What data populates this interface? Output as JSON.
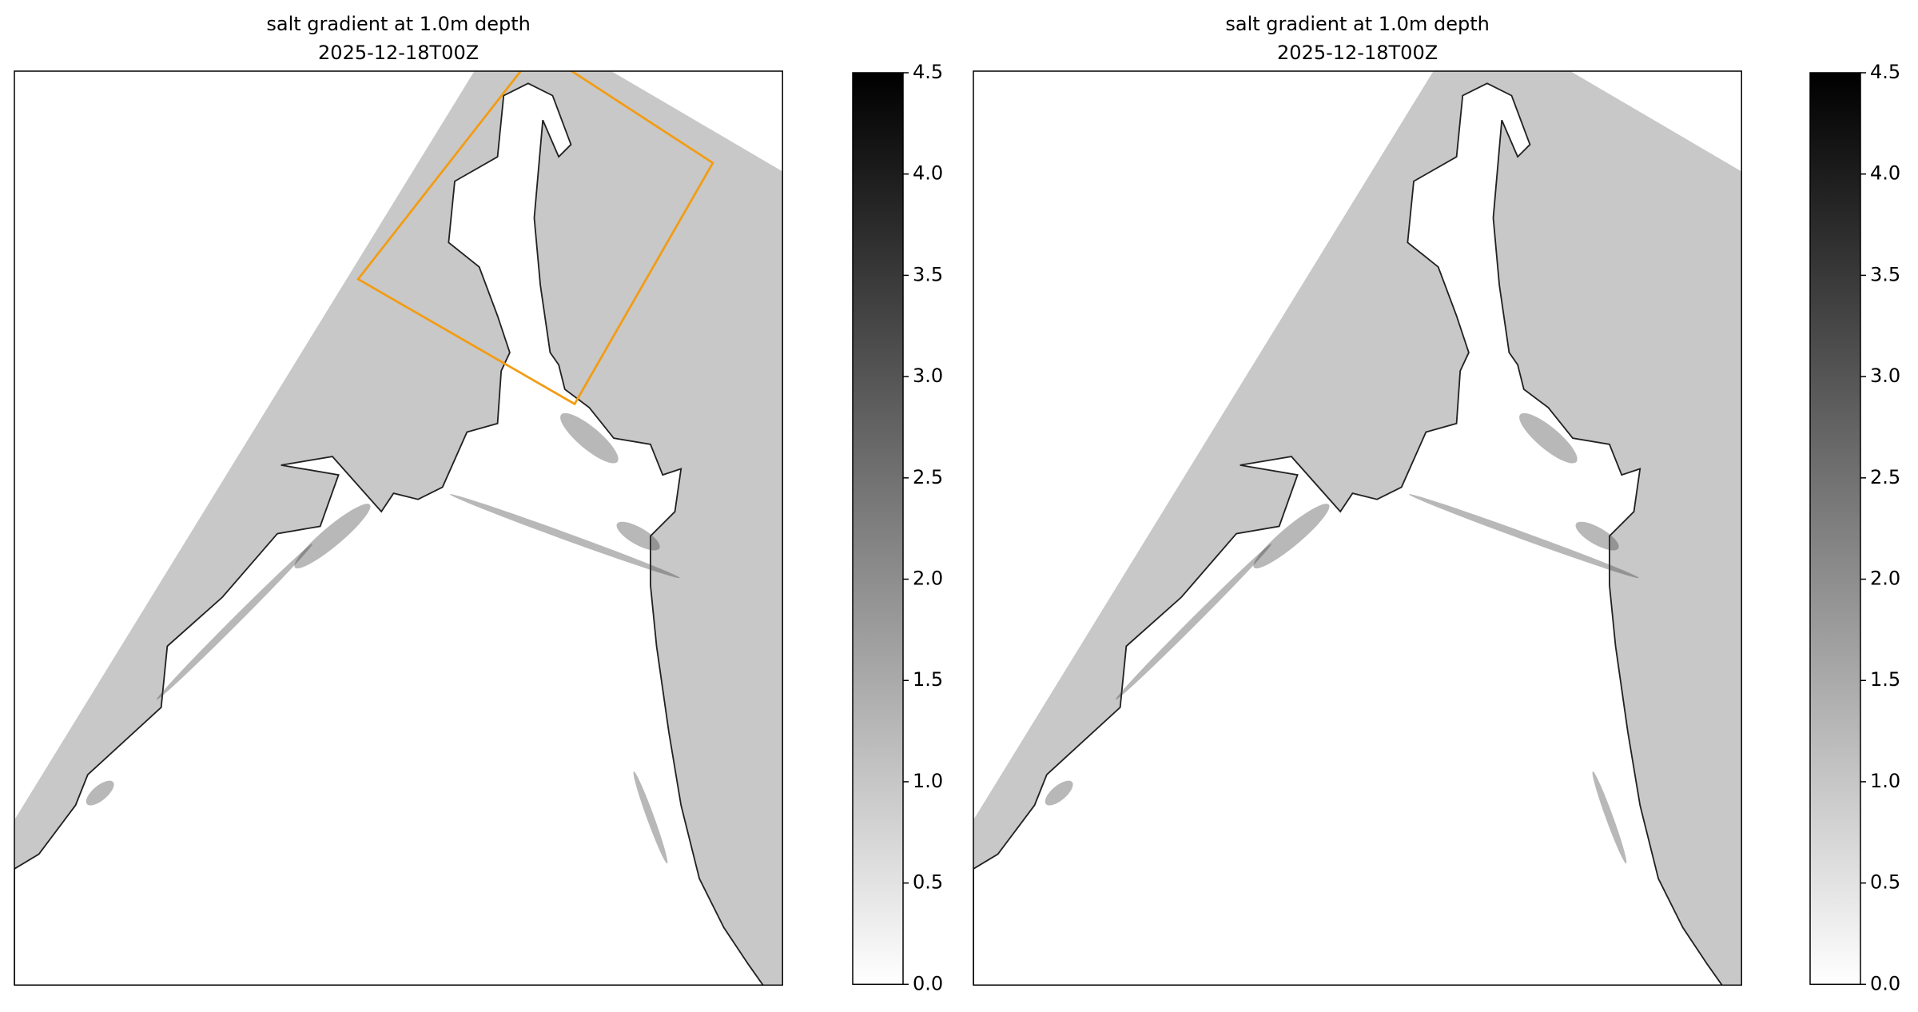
{
  "chart_data": [
    {
      "type": "map",
      "title": "salt gradient at 1.0m depth",
      "subtitle": "2025-12-18T00Z",
      "clim": [
        0,
        4.5
      ],
      "cticks": [
        {
          "value": 0,
          "label": "0.0"
        },
        0.5,
        {
          "value": 1,
          "label": "1.0"
        },
        1.5,
        {
          "value": 2,
          "label": "2.0"
        },
        2.5,
        {
          "value": 3,
          "label": "3.0"
        },
        3.5,
        {
          "value": 4,
          "label": "4.0"
        },
        4.5
      ],
      "colormap": [
        "#ffffff",
        "#000000"
      ],
      "inset_box": true
    },
    {
      "type": "map",
      "title": "salt gradient at 1.0m depth",
      "subtitle": "2025-12-18T00Z",
      "clim": [
        0,
        4.5
      ],
      "cticks": [
        {
          "value": 0,
          "label": "0.0"
        },
        0.5,
        {
          "value": 1,
          "label": "1.0"
        },
        1.5,
        {
          "value": 2,
          "label": "2.0"
        },
        2.5,
        {
          "value": 3,
          "label": "3.0"
        },
        3.5,
        {
          "value": 4,
          "label": "4.0"
        },
        4.5
      ],
      "colormap": [
        "#ffffff",
        "#000000"
      ],
      "inset_box": false
    }
  ]
}
